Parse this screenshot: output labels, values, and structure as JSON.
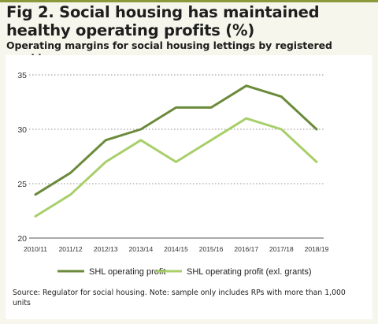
{
  "title": "Fig 2. Social housing has maintained healthy operating profits (%)",
  "subtitle": "Operating margins for social housing lettings by registered providers",
  "source": "Source: Regulator for social housing. Note: sample only includes RPs with more than 1,000 units",
  "chart_data": {
    "type": "line",
    "title": "Fig 2. Social housing has maintained healthy operating profits (%)",
    "subtitle": "Operating margins for social housing lettings by registered providers",
    "categories": [
      "2010/11",
      "2011/12",
      "2012/13",
      "2013/14",
      "2014/15",
      "2015/16",
      "2016/17",
      "2017/18",
      "2018/19"
    ],
    "series": [
      {
        "name": "SHL operating profit",
        "color": "#6b8a3a",
        "values": [
          24,
          26,
          29,
          30,
          32,
          32,
          34,
          33,
          30
        ]
      },
      {
        "name": "SHL operating profit (exl. grants)",
        "color": "#a8cf6a",
        "values": [
          22,
          24,
          27,
          29,
          27,
          29,
          31,
          30,
          27
        ]
      }
    ],
    "ylim": [
      20,
      35
    ],
    "yticks": [
      20,
      25,
      30,
      35
    ],
    "grid": true,
    "legend": "bottom"
  }
}
